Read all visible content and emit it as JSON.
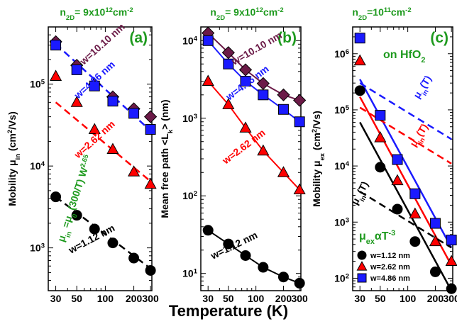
{
  "figure": {
    "shared_xlabel": "Temperature (K)",
    "colors": {
      "black": "#000000",
      "red": "#ff0000",
      "blue": "#1a1aff",
      "maroon": "#6b1a47",
      "green": "#1e9a1e"
    }
  },
  "chart_data": [
    {
      "type": "scatter",
      "panel": "(a)",
      "header": "n2D= 9x10^12cm^-2",
      "header_parts": {
        "sub": "2D",
        "base": "9x10",
        "exp": "12",
        "unit": "cm",
        "uexp": "-2"
      },
      "ylabel": "Mobility μin (cm²/Vs)",
      "ylabel_parts": {
        "pre": "Mobility μ",
        "sub": "in",
        "mid": " (cm",
        "sup": "2",
        "post": "/Vs)"
      },
      "xscale": "log",
      "yscale": "log",
      "xlim": [
        25,
        310
      ],
      "ylim": [
        300,
        500000
      ],
      "xticks": [
        "30",
        "50",
        "100",
        "200",
        "300"
      ],
      "yticks": [
        {
          "m": "10",
          "e": "3",
          "v": 1000
        },
        {
          "m": "10",
          "e": "4",
          "v": 10000
        },
        {
          "m": "10",
          "e": "5",
          "v": 100000
        }
      ],
      "series": [
        {
          "name": "w=10.10 nm",
          "color": "#6b1a47",
          "marker": "diamond",
          "x": [
            30,
            50,
            77,
            120,
            200,
            300
          ],
          "y": [
            330000,
            170000,
            100000,
            70000,
            50000,
            40000
          ]
        },
        {
          "name": "w=4.86 nm",
          "color": "#1a1aff",
          "marker": "square",
          "x": [
            30,
            50,
            77,
            120,
            200,
            300
          ],
          "y": [
            300000,
            150000,
            95000,
            62000,
            44000,
            28000
          ],
          "line": {
            "x": [
              30,
              300
            ],
            "y": [
              310000,
              27000
            ],
            "style": "dashed"
          }
        },
        {
          "name": "w=2.62 nm",
          "color": "#ff0000",
          "marker": "triangle",
          "x": [
            30,
            50,
            77,
            120,
            200,
            300
          ],
          "y": [
            125000,
            60000,
            28000,
            16000,
            8500,
            6000
          ],
          "line": {
            "x": [
              30,
              300
            ],
            "y": [
              60000,
              6500
            ],
            "style": "dashed"
          }
        },
        {
          "name": "w=1.12 nm",
          "color": "#000000",
          "marker": "circle",
          "x": [
            30,
            50,
            77,
            120,
            200,
            300
          ],
          "y": [
            4200,
            2500,
            1700,
            1150,
            750,
            530
          ],
          "line": {
            "x": [
              30,
              300
            ],
            "y": [
              4200,
              560
            ],
            "style": "dashed"
          }
        }
      ],
      "annotations": [
        {
          "text": "w=10.10 nm",
          "color": "#6b1a47"
        },
        {
          "text": "w=4.86 nm",
          "color": "#1a1aff"
        },
        {
          "text": "w=2.62 nm",
          "color": "#ff0000"
        },
        {
          "text": "w=1.12 nm",
          "color": "#000000"
        }
      ],
      "formula": {
        "mu": "μ",
        "sub1": "in",
        "mid": " =μ",
        "sub2": "0",
        "tail": " (300/T) W",
        "exp": "2.65",
        "color": "#1e9a1e"
      }
    },
    {
      "type": "line",
      "panel": "(b)",
      "header": "n2D= 9x10^12cm^-2",
      "header_parts": {
        "sub": "2D",
        "base": "9x10",
        "exp": "12",
        "unit": "cm",
        "uexp": "-2"
      },
      "ylabel": "Mean free path <Lk> (nm)",
      "ylabel_parts": {
        "pre": "Mean free path <L",
        "sub": "k",
        "post": "> (nm)"
      },
      "xscale": "log",
      "yscale": "log",
      "xlim": [
        25,
        310
      ],
      "ylim": [
        6,
        15000
      ],
      "xticks": [
        "30",
        "50",
        "100",
        "200",
        "300"
      ],
      "yticks": [
        {
          "m": "10",
          "e": "1",
          "v": 10
        },
        {
          "m": "10",
          "e": "2",
          "v": 100
        },
        {
          "m": "10",
          "e": "3",
          "v": 1000
        },
        {
          "m": "10",
          "e": "4",
          "v": 10000
        }
      ],
      "series": [
        {
          "name": "w=10.10 nm",
          "color": "#6b1a47",
          "marker": "diamond",
          "x": [
            30,
            50,
            77,
            120,
            200,
            300
          ],
          "y": [
            12500,
            7000,
            4200,
            2800,
            2000,
            1700
          ]
        },
        {
          "name": "w=4.86 nm",
          "color": "#1a1aff",
          "marker": "square",
          "x": [
            30,
            50,
            77,
            120,
            200,
            300
          ],
          "y": [
            10000,
            5000,
            3000,
            2000,
            1300,
            900
          ]
        },
        {
          "name": "w=2.62 nm",
          "color": "#ff0000",
          "marker": "triangle",
          "x": [
            30,
            50,
            77,
            120,
            200,
            300
          ],
          "y": [
            3000,
            1500,
            750,
            380,
            200,
            120
          ]
        },
        {
          "name": "w=1.12 nm",
          "color": "#000000",
          "marker": "circle",
          "x": [
            30,
            50,
            77,
            120,
            200,
            300
          ],
          "y": [
            36,
            24,
            17,
            12,
            9,
            7.5
          ]
        }
      ],
      "annotations": [
        {
          "text": "w=10.10 nm",
          "color": "#6b1a47"
        },
        {
          "text": "w=4.86 nm",
          "color": "#1a1aff"
        },
        {
          "text": "w=2.62 nm",
          "color": "#ff0000"
        },
        {
          "text": "w=1.12 nm",
          "color": "#000000"
        }
      ]
    },
    {
      "type": "scatter",
      "panel": "(c)",
      "header": "n2D=10^11cm^-2",
      "header_parts": {
        "sub": "2D",
        "base": "10",
        "exp": "11",
        "unit": "cm",
        "uexp": "-2"
      },
      "subtitle": "on HfO2",
      "subtitle_parts": {
        "pre": "on HfO",
        "sub": "2"
      },
      "ylabel": "Mobility μex (cm²/Vs)",
      "ylabel_parts": {
        "pre": "Mobility μ",
        "sub": "ex",
        "mid": " (cm",
        "sup": "2",
        "post": "/Vs)"
      },
      "xscale": "log",
      "yscale": "log",
      "xlim": [
        25,
        310
      ],
      "ylim": [
        60,
        3000000
      ],
      "xticks": [
        "30",
        "50",
        "100",
        "200",
        "300"
      ],
      "yticks": [
        {
          "m": "10",
          "e": "2",
          "v": 100
        },
        {
          "m": "10",
          "e": "3",
          "v": 1000
        },
        {
          "m": "10",
          "e": "4",
          "v": 10000
        },
        {
          "m": "10",
          "e": "5",
          "v": 100000
        },
        {
          "m": "10",
          "e": "6",
          "v": 1000000
        }
      ],
      "series": [
        {
          "name": "w=1.12 nm",
          "color": "#000000",
          "marker": "circle",
          "x": [
            30,
            50,
            77,
            120,
            200,
            300
          ],
          "y": [
            220000,
            9500,
            1700,
            450,
            130,
            65
          ],
          "line": {
            "x": [
              30,
              300
            ],
            "y": [
              60000,
              60
            ],
            "style": "solid"
          }
        },
        {
          "name": "w=2.62 nm",
          "color": "#ff0000",
          "marker": "triangle",
          "x": [
            30,
            50,
            77,
            120,
            200,
            300
          ],
          "y": [
            750000,
            32000,
            5500,
            1400,
            450,
            200
          ],
          "line": {
            "x": [
              30,
              300
            ],
            "y": [
              170000,
              170
            ],
            "style": "solid"
          }
        },
        {
          "name": "w=4.86 nm",
          "color": "#1a1aff",
          "marker": "square",
          "x": [
            30,
            50,
            77,
            120,
            200,
            300
          ],
          "y": [
            1900000,
            80000,
            13000,
            3200,
            950,
            480
          ],
          "line": {
            "x": [
              30,
              300
            ],
            "y": [
              350000,
              350
            ],
            "style": "solid"
          }
        }
      ],
      "extra_lines": [
        {
          "color": "#1a1aff",
          "x": [
            30,
            300
          ],
          "y": [
            300000,
            30000
          ],
          "style": "dashed"
        },
        {
          "color": "#ff0000",
          "x": [
            30,
            300
          ],
          "y": [
            110000,
            11000
          ],
          "style": "dashed"
        },
        {
          "color": "#000000",
          "x": [
            30,
            300
          ],
          "y": [
            3500,
            350
          ],
          "style": "dashed"
        }
      ],
      "curve_labels": [
        {
          "mu": "μ",
          "sub": "in",
          "rest": "(T)",
          "color": "#1a1aff"
        },
        {
          "mu": "μ",
          "sub": "in",
          "rest": "(T)",
          "color": "#ff0000"
        },
        {
          "mu": "μ",
          "sub": "in",
          "rest": "(T)",
          "color": "#000000"
        }
      ],
      "formula": {
        "mu": "μ",
        "sub": "ex",
        "mid": "αT",
        "exp": "-3",
        "color": "#1e9a1e"
      },
      "legend": {
        "position": "bottom-right",
        "entries": [
          {
            "label": "w=1.12 nm",
            "color": "#000000",
            "marker": "circle"
          },
          {
            "label": "w=2.62 nm",
            "color": "#ff0000",
            "marker": "triangle"
          },
          {
            "label": "w=4.86 nm",
            "color": "#1a1aff",
            "marker": "square"
          }
        ]
      }
    }
  ]
}
